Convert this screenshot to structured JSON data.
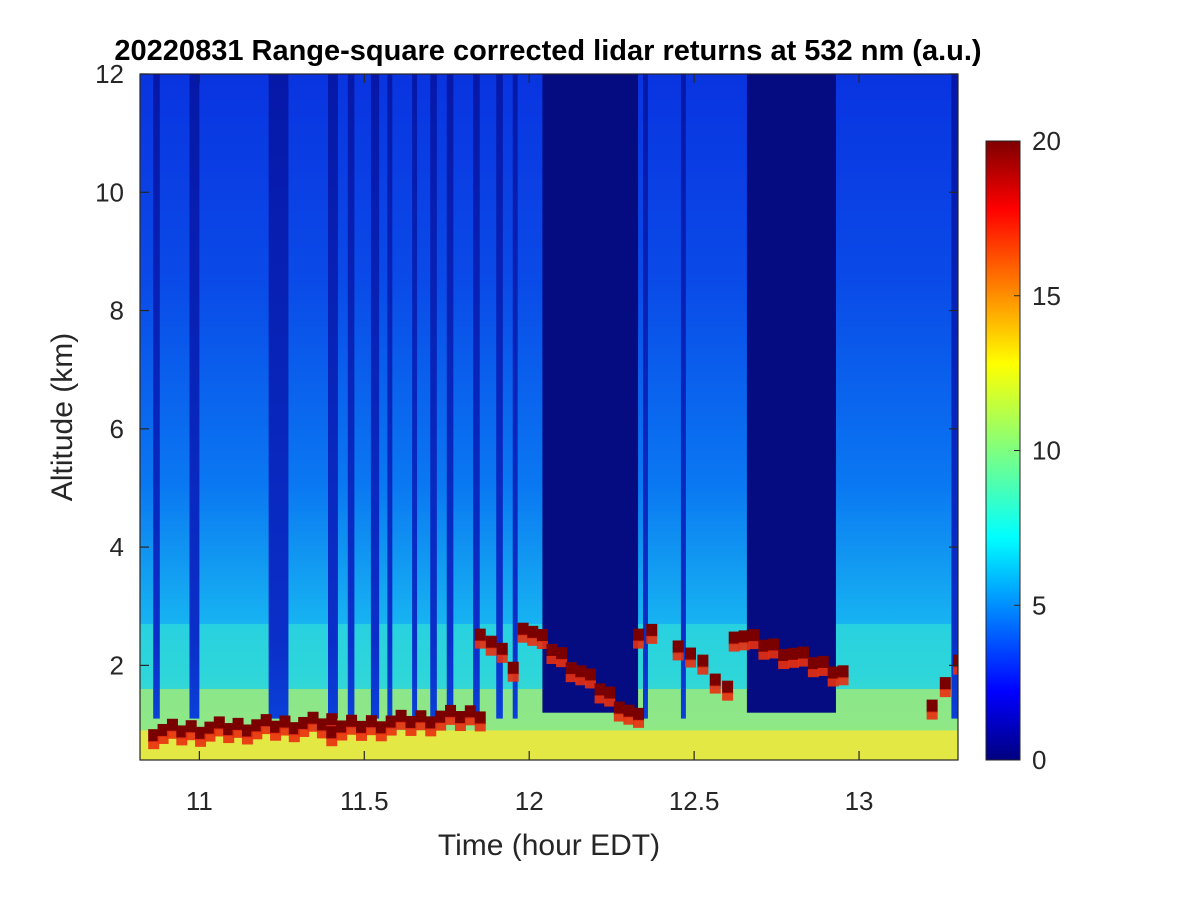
{
  "chart_data": {
    "type": "heatmap",
    "title": "20220831  Range-square corrected lidar returns at 532 nm (a.u.)",
    "xlabel": "Time (hour EDT)",
    "ylabel": "Altitude (km)",
    "xlim": [
      10.82,
      13.3
    ],
    "ylim": [
      0.4,
      12
    ],
    "x_ticks": [
      11,
      11.5,
      12,
      12.5,
      13
    ],
    "x_tick_labels": [
      "11",
      "11.5",
      "12",
      "12.5",
      "13"
    ],
    "y_ticks": [
      2,
      4,
      6,
      8,
      10,
      12
    ],
    "y_tick_labels": [
      "2",
      "4",
      "6",
      "8",
      "10",
      "12"
    ],
    "colorbar": {
      "colormap": "jet",
      "range": [
        0,
        20
      ],
      "ticks": [
        0,
        5,
        10,
        15,
        20
      ],
      "tick_labels": [
        "0",
        "5",
        "10",
        "15",
        "20"
      ]
    },
    "cloud_free_boundary_layer_top_km": 2.7,
    "dark_attenuated_profiles_hours": [
      [
        10.86,
        10.88
      ],
      [
        10.97,
        11.0
      ],
      [
        11.21,
        11.27
      ],
      [
        11.39,
        11.42
      ],
      [
        11.45,
        11.47
      ],
      [
        11.52,
        11.545
      ],
      [
        11.57,
        11.585
      ],
      [
        11.645,
        11.66
      ],
      [
        11.7,
        11.72
      ],
      [
        11.75,
        11.77
      ],
      [
        11.83,
        11.85
      ],
      [
        11.9,
        11.92
      ],
      [
        11.95,
        11.965
      ],
      [
        12.04,
        12.33
      ],
      [
        12.345,
        12.36
      ],
      [
        12.46,
        12.475
      ],
      [
        12.66,
        12.93
      ],
      [
        13.28,
        13.3
      ]
    ],
    "cloud_base_segments": [
      {
        "x": [
          10.86,
          11.4
        ],
        "y": [
          0.9,
          1.05
        ]
      },
      {
        "x": [
          11.4,
          11.85
        ],
        "y": [
          0.95,
          1.2
        ]
      },
      {
        "x": [
          11.85,
          11.95
        ],
        "y": [
          2.6,
          2.0
        ]
      },
      {
        "x": [
          11.98,
          12.33
        ],
        "y": [
          2.7,
          1.1
        ]
      },
      {
        "x": [
          12.33,
          12.37
        ],
        "y": [
          2.6,
          2.6
        ]
      },
      {
        "x": [
          12.45,
          12.6
        ],
        "y": [
          2.4,
          1.6
        ]
      },
      {
        "x": [
          12.62,
          12.95
        ],
        "y": [
          2.55,
          1.9
        ]
      },
      {
        "x": [
          13.22,
          13.3
        ],
        "y": [
          1.4,
          2.0
        ]
      }
    ],
    "grid": false,
    "legend": "none"
  },
  "colors": {
    "low": "#00007f",
    "mid": "#00ffff",
    "high": "#7f0000",
    "axis": "#262626"
  }
}
